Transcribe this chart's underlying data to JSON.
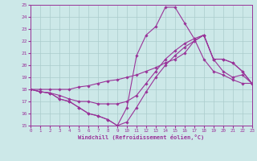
{
  "bg_color": "#cce8e8",
  "grid_color": "#aacccc",
  "line_color": "#993399",
  "xlabel": "Windchill (Refroidissement éolien,°C)",
  "xlim": [
    0,
    23
  ],
  "ylim": [
    15,
    25
  ],
  "yticks": [
    15,
    16,
    17,
    18,
    19,
    20,
    21,
    22,
    23,
    24,
    25
  ],
  "xticks": [
    0,
    1,
    2,
    3,
    4,
    5,
    6,
    7,
    8,
    9,
    10,
    11,
    12,
    13,
    14,
    15,
    16,
    17,
    18,
    19,
    20,
    21,
    22,
    23
  ],
  "lines": [
    {
      "x": [
        0,
        1,
        2,
        3,
        4,
        5,
        6,
        7,
        8,
        9,
        10,
        11,
        12,
        13,
        14,
        15,
        16,
        17,
        18,
        19,
        20,
        21,
        22,
        23
      ],
      "y": [
        18,
        17.8,
        17.7,
        17.2,
        17.0,
        16.5,
        16.0,
        15.8,
        15.5,
        15.0,
        16.5,
        20.8,
        22.5,
        23.2,
        24.8,
        24.8,
        23.5,
        22.2,
        20.5,
        19.5,
        19.2,
        18.8,
        18.5,
        18.5
      ]
    },
    {
      "x": [
        0,
        1,
        2,
        3,
        4,
        5,
        6,
        7,
        8,
        9,
        10,
        11,
        12,
        13,
        14,
        15,
        16,
        17,
        18,
        19,
        20,
        21,
        22,
        23
      ],
      "y": [
        18,
        17.8,
        17.7,
        17.5,
        17.2,
        17.0,
        17.0,
        16.8,
        16.8,
        16.8,
        17.0,
        17.5,
        18.5,
        19.5,
        20.5,
        21.2,
        21.8,
        22.2,
        22.5,
        20.5,
        20.5,
        20.2,
        19.5,
        18.5
      ]
    },
    {
      "x": [
        0,
        1,
        2,
        3,
        4,
        5,
        6,
        7,
        8,
        9,
        10,
        11,
        12,
        13,
        14,
        15,
        16,
        17,
        18,
        19,
        20,
        21,
        22,
        23
      ],
      "y": [
        18,
        18.0,
        18.0,
        18.0,
        18.0,
        18.2,
        18.3,
        18.5,
        18.7,
        18.8,
        19.0,
        19.2,
        19.5,
        19.8,
        20.2,
        20.5,
        21.0,
        22.0,
        22.5,
        20.5,
        20.5,
        20.2,
        19.5,
        18.5
      ]
    },
    {
      "x": [
        0,
        1,
        2,
        3,
        4,
        5,
        6,
        7,
        8,
        9,
        10,
        11,
        12,
        13,
        14,
        15,
        16,
        17,
        18,
        19,
        20,
        21,
        22,
        23
      ],
      "y": [
        18,
        17.8,
        17.7,
        17.2,
        17.0,
        16.5,
        16.0,
        15.8,
        15.5,
        15.0,
        15.3,
        16.5,
        17.8,
        19.0,
        20.0,
        20.8,
        21.5,
        22.0,
        22.5,
        20.5,
        19.5,
        19.0,
        19.2,
        18.5
      ]
    }
  ]
}
